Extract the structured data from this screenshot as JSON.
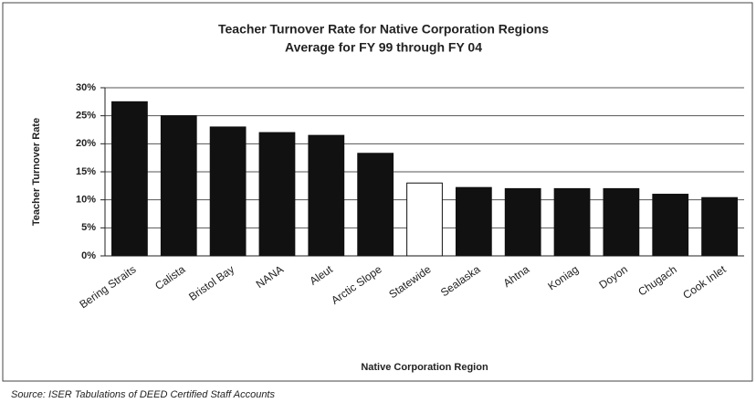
{
  "chart_data": {
    "type": "bar",
    "title": "Teacher Turnover Rate for Native Corporation Regions",
    "subtitle": "Average for FY 99 through FY 04",
    "y_label": "Teacher Turnover Rate",
    "x_label": "Native Corporation Region",
    "source": "Source: ISER Tabulations of DEED Certified Staff Accounts",
    "categories": [
      "Bering Straits",
      "Calista",
      "Bristol Bay",
      "NANA",
      "Aleut",
      "Arctic Slope",
      "Statewide",
      "Sealaska",
      "Ahtna",
      "Koniag",
      "Doyon",
      "Chugach",
      "Cook Inlet"
    ],
    "values": [
      27.5,
      25,
      23,
      22,
      21.5,
      18.3,
      13,
      12.2,
      12,
      12,
      12,
      11,
      10.4
    ],
    "colors": [
      "#111111",
      "#111111",
      "#111111",
      "#111111",
      "#111111",
      "#111111",
      "#ffffff",
      "#111111",
      "#111111",
      "#111111",
      "#111111",
      "#111111",
      "#111111"
    ],
    "ylim": [
      0,
      30
    ],
    "yticks": [
      {
        "value": 0,
        "label": "0%"
      },
      {
        "value": 5,
        "label": "5%"
      },
      {
        "value": 10,
        "label": "10%"
      },
      {
        "value": 15,
        "label": "15%"
      },
      {
        "value": 20,
        "label": "20%"
      },
      {
        "value": 25,
        "label": "25%"
      },
      {
        "value": 30,
        "label": "30%"
      }
    ],
    "grid": true
  }
}
